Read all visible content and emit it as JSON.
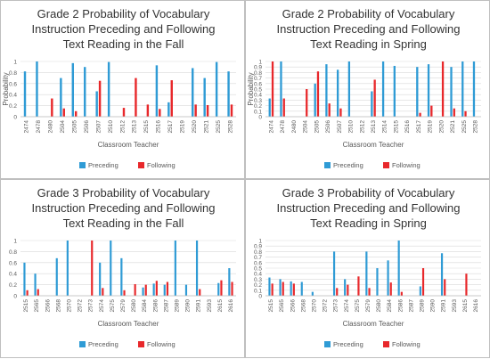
{
  "colors": {
    "preceding": "#2f9bd5",
    "following": "#e8282b",
    "grid": "#d9d9d9",
    "text": "#595959"
  },
  "chart_data": [
    {
      "type": "bar",
      "title": [
        "Grade 2 Probability of Vocabulary",
        "Instruction Preceding and Following",
        "Text Reading in the Fall"
      ],
      "xlabel": "Classroom Teacher",
      "ylabel": "Probability",
      "ylim": [
        0,
        1
      ],
      "yticks": [
        "0",
        "0.2",
        "0.4",
        "0.6",
        "0.8",
        "1"
      ],
      "legend_position": "bottom",
      "categories": [
        "2474",
        "2478",
        "2480",
        "2504",
        "2505",
        "2506",
        "2507",
        "2510",
        "2512",
        "2513",
        "2515",
        "2516",
        "2517",
        "2519",
        "2520",
        "2521",
        "2525",
        "2528"
      ],
      "series": [
        {
          "name": "Preceding",
          "values": [
            0.82,
            1.0,
            0,
            0.7,
            0.97,
            0.9,
            0.46,
            0.99,
            0,
            0,
            0,
            0.93,
            0.26,
            0,
            0.88,
            0.7,
            0.99,
            0.82
          ]
        },
        {
          "name": "Following",
          "values": [
            0,
            0,
            0.33,
            0.15,
            0.1,
            0,
            0.65,
            0,
            0.16,
            0.7,
            0.22,
            0.14,
            0.66,
            0,
            0.22,
            0.21,
            0,
            0.22
          ]
        }
      ]
    },
    {
      "type": "bar",
      "title": [
        "Grade 2 Probability of Vocabulary",
        "Instruction Preceding and Following",
        "Text Reading in Spring"
      ],
      "xlabel": "Classroom Teacher",
      "ylabel": "Probability",
      "ylim": [
        0,
        1
      ],
      "yticks": [
        "0",
        "0.1",
        "0.2",
        "0.3",
        "0.4",
        "0.5",
        "0.6",
        "0.7",
        "0.8",
        "0.9",
        "1"
      ],
      "legend_position": "bottom",
      "categories": [
        "2474",
        "2478",
        "2480",
        "2504",
        "2505",
        "2506",
        "2507",
        "2510",
        "2512",
        "2513",
        "2514",
        "2515",
        "2516",
        "2517",
        "2519",
        "2520",
        "2521",
        "2525",
        "2528"
      ],
      "series": [
        {
          "name": "Preceding",
          "values": [
            0.33,
            1.0,
            0,
            0,
            0.6,
            0.95,
            0.85,
            1.0,
            0,
            0.46,
            1.0,
            0.92,
            0,
            0.9,
            0.95,
            0,
            0.9,
            1.0,
            1.0
          ]
        },
        {
          "name": "Following",
          "values": [
            1.0,
            0.33,
            0,
            0.5,
            0.82,
            0.24,
            0.15,
            0,
            0,
            0.67,
            0,
            0,
            0,
            0.07,
            0.2,
            1.0,
            0.15,
            0.1,
            0
          ]
        }
      ]
    },
    {
      "type": "bar",
      "title": [
        "Grade 3 Probability of Vocabulary",
        "Instruction Preceding and Following",
        "Text Reading in the Fall"
      ],
      "xlabel": "Classroom Teacher",
      "ylabel": "",
      "ylim": [
        0,
        1
      ],
      "yticks": [
        "0",
        "0.2",
        "0.4",
        "0.6",
        "0.8",
        "1"
      ],
      "legend_position": "bottom",
      "categories": [
        "2515",
        "2565",
        "2566",
        "2568",
        "2570",
        "2572",
        "2573",
        "2574",
        "2575",
        "2579",
        "2580",
        "2584",
        "2586",
        "2587",
        "2589",
        "2590",
        "2591",
        "2593",
        "2615",
        "2616"
      ],
      "series": [
        {
          "name": "Preceding",
          "values": [
            0.6,
            0.4,
            0,
            0.68,
            1.0,
            0,
            0,
            0.6,
            1.0,
            0.68,
            0,
            0.15,
            0.22,
            0.2,
            1.0,
            0.2,
            1.0,
            0,
            0.23,
            0.5
          ]
        },
        {
          "name": "Following",
          "values": [
            0.1,
            0.12,
            0,
            0,
            0,
            0,
            1.0,
            0.14,
            0,
            0.1,
            0.21,
            0.2,
            0.27,
            0.25,
            0,
            0,
            0.12,
            0,
            0.28,
            0.25
          ]
        }
      ]
    },
    {
      "type": "bar",
      "title": [
        "Grade 3 Probability of Vocabulary",
        "Instruction Preceding and Following",
        "Text Reading in Spring"
      ],
      "xlabel": "Classroom Teacher",
      "ylabel": "",
      "ylim": [
        0,
        1
      ],
      "yticks": [
        "0",
        "0.1",
        "0.2",
        "0.3",
        "0.4",
        "0.5",
        "0.6",
        "0.7",
        "0.8",
        "0.9",
        "1"
      ],
      "legend_position": "bottom",
      "categories": [
        "2515",
        "2565",
        "2566",
        "2568",
        "2570",
        "2572",
        "2573",
        "2574",
        "2575",
        "2579",
        "2580",
        "2584",
        "2586",
        "2587",
        "2589",
        "2590",
        "2591",
        "2593",
        "2615",
        "2616"
      ],
      "series": [
        {
          "name": "Preceding",
          "values": [
            0.33,
            0.3,
            0.26,
            0.25,
            0.07,
            0,
            0.8,
            0.3,
            0,
            0.8,
            0.5,
            0.64,
            1.0,
            0,
            0.17,
            0,
            0.77,
            0,
            0,
            0
          ]
        },
        {
          "name": "Following",
          "values": [
            0.22,
            0.25,
            0.22,
            0,
            0,
            0,
            0.14,
            0.2,
            0.35,
            0.14,
            0,
            0.24,
            0.07,
            0,
            0.5,
            0,
            0.3,
            0,
            0.4,
            0
          ]
        }
      ]
    }
  ]
}
